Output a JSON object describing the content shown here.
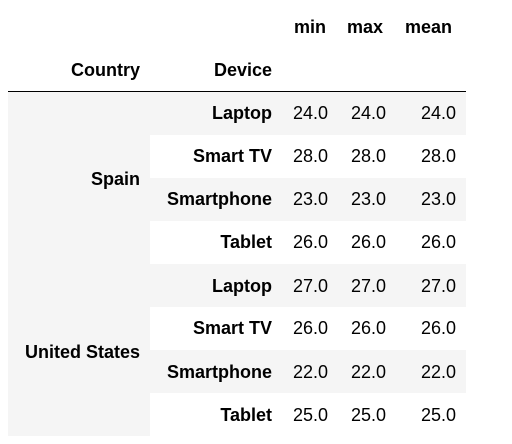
{
  "columns": [
    "min",
    "max",
    "mean"
  ],
  "index_names": {
    "level0": "Country",
    "level1": "Device"
  },
  "groups": [
    {
      "country": "Spain",
      "rows": [
        {
          "device": "Laptop",
          "min": "24.0",
          "max": "24.0",
          "mean": "24.0"
        },
        {
          "device": "Smart TV",
          "min": "28.0",
          "max": "28.0",
          "mean": "28.0"
        },
        {
          "device": "Smartphone",
          "min": "23.0",
          "max": "23.0",
          "mean": "23.0"
        },
        {
          "device": "Tablet",
          "min": "26.0",
          "max": "26.0",
          "mean": "26.0"
        }
      ]
    },
    {
      "country": "United States",
      "rows": [
        {
          "device": "Laptop",
          "min": "27.0",
          "max": "27.0",
          "mean": "27.0"
        },
        {
          "device": "Smart TV",
          "min": "26.0",
          "max": "26.0",
          "mean": "26.0"
        },
        {
          "device": "Smartphone",
          "min": "22.0",
          "max": "22.0",
          "mean": "22.0"
        },
        {
          "device": "Tablet",
          "min": "25.0",
          "max": "25.0",
          "mean": "25.0"
        }
      ]
    }
  ]
}
